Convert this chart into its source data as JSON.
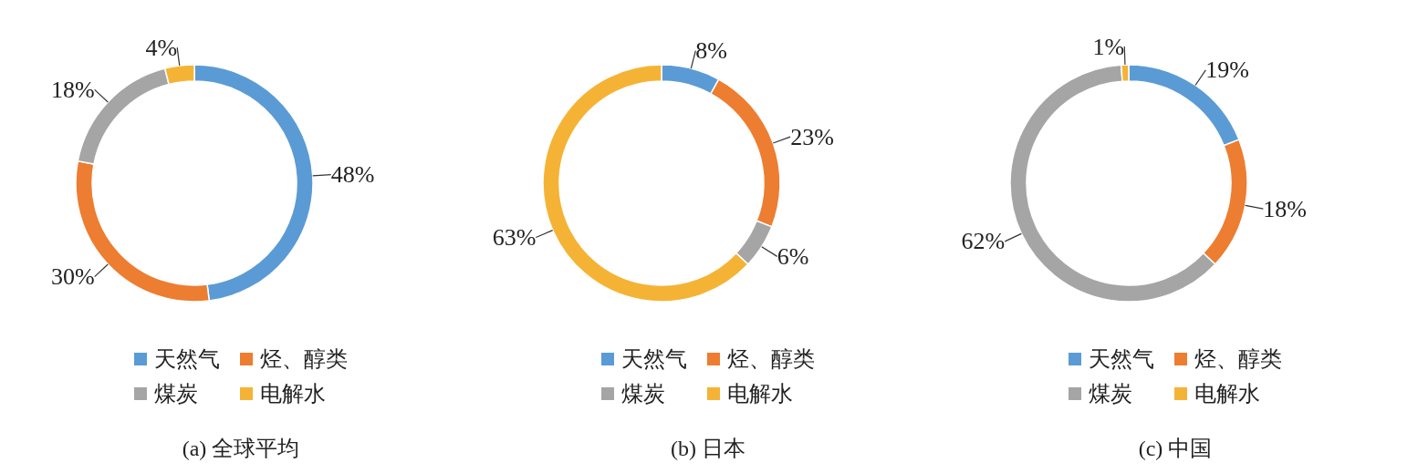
{
  "chart_data": [
    {
      "type": "donut",
      "title": "(a) 全球平均",
      "categories": [
        "天然气",
        "烃、醇类",
        "煤炭",
        "电解水"
      ],
      "values": [
        48,
        30,
        18,
        4
      ],
      "colors": [
        "#5b9bd5",
        "#ed7d31",
        "#a5a5a5",
        "#f5b335"
      ],
      "value_labels": [
        "48%",
        "30%",
        "18%",
        "4%"
      ],
      "legend": "bottom"
    },
    {
      "type": "donut",
      "title": "(b) 日本",
      "categories": [
        "天然气",
        "烃、醇类",
        "煤炭",
        "电解水"
      ],
      "values": [
        8,
        23,
        6,
        63
      ],
      "colors": [
        "#5b9bd5",
        "#ed7d31",
        "#a5a5a5",
        "#f5b335"
      ],
      "value_labels": [
        "8%",
        "23%",
        "6%",
        "63%"
      ],
      "legend": "bottom"
    },
    {
      "type": "donut",
      "title": "(c) 中国",
      "categories": [
        "天然气",
        "烃、醇类",
        "煤炭",
        "电解水"
      ],
      "values": [
        19,
        18,
        62,
        1
      ],
      "colors": [
        "#5b9bd5",
        "#ed7d31",
        "#a5a5a5",
        "#f5b335"
      ],
      "value_labels": [
        "19%",
        "18%",
        "62%",
        "1%"
      ],
      "legend": "bottom"
    }
  ]
}
